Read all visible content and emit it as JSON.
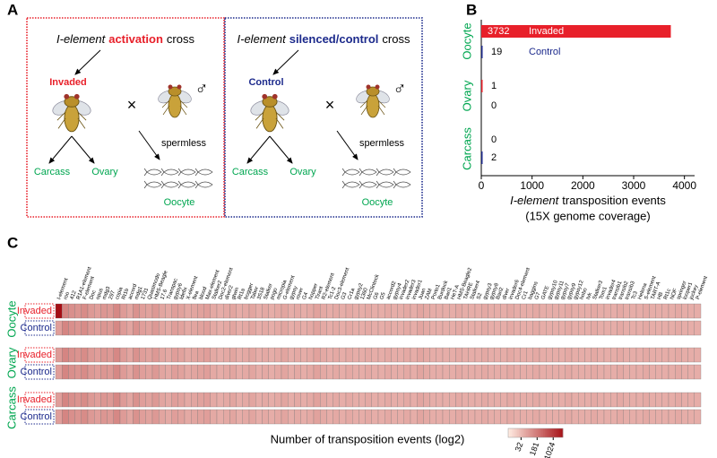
{
  "panel_a": {
    "label": "A",
    "left": {
      "title": [
        "I-element",
        "activation",
        "cross"
      ],
      "mother": "Invaded",
      "cross_sign": "×",
      "male_sign": "♂",
      "male": "spermless",
      "tissues": [
        "Carcass",
        "Ovary",
        "Oocyte"
      ],
      "color": "#e8202a"
    },
    "right": {
      "title": [
        "I-element",
        "silenced/control",
        "cross"
      ],
      "mother": "Control",
      "cross_sign": "×",
      "male_sign": "♂",
      "male": "spermless",
      "tissues": [
        "Carcass",
        "Ovary",
        "Oocyte"
      ],
      "color": "#1c2a8c"
    }
  },
  "chart_data": {
    "type": "hbar",
    "label": "B",
    "categories": [
      "Oocyte",
      "Ovary",
      "Carcass"
    ],
    "series": [
      {
        "name": "Invaded",
        "color": "#e8202a",
        "values": [
          3732,
          1,
          0
        ]
      },
      {
        "name": "Control",
        "color": "#1c2a8c",
        "values": [
          19,
          0,
          2
        ]
      }
    ],
    "xlim": [
      0,
      4200
    ],
    "xticks": [
      0,
      1000,
      2000,
      3000,
      4000
    ],
    "xlabel": [
      "I-element",
      "transposition events"
    ],
    "xlabel2": "(15X genome coverage)",
    "category_color": "#00a650"
  },
  "heatmap": {
    "label": "C",
    "columns": [
      "I-element",
      "roo",
      "412",
      "R1A1-element",
      "F-element",
      "Doc",
      "opus",
      "mdg3",
      "297",
      "copia",
      "Rt1b",
      "accord",
      "mdg1",
      "1731",
      "Quasimodo",
      "HMS-Beagle",
      "17.6",
      "Transpac",
      "gypsy6",
      "Idefix",
      "X-element",
      "flea",
      "blood",
      "Max-element",
      "Stalker2",
      "Doc2-element",
      "diver2",
      "gtwin",
      "Rt1a",
      "frogger",
      "Tabor",
      "3S18",
      "Stalker",
      "pogo",
      "micropia",
      "G-element",
      "gypsy",
      "rover",
      "G4",
      "hopper",
      "Tirant",
      "R2-element",
      "Tc1-2",
      "Doc3-element",
      "G3",
      "Cr1a",
      "gypsy2",
      "1360",
      "McClintock",
      "G6",
      "G5",
      "accord2",
      "gypsy4",
      "invader2",
      "invader3",
      "invader1",
      "Juan",
      "ZAM",
      "Porto1",
      "Burdock",
      "Bari1",
      "HeT-A",
      "HMS-Beagle2",
      "TAHRE",
      "Stalker4",
      "S2",
      "gypsy3",
      "gypsy8",
      "Bari2",
      "diver",
      "invader6",
      "Doc4-element",
      "Cr1",
      "baggins",
      "G7",
      "GATE",
      "gypsy10",
      "gypsy11",
      "gypsy7",
      "gypsy9",
      "gypsy12",
      "hobo",
      "Ivk",
      "Stalker3",
      "Tom1",
      "invader4",
      "transib1",
      "transib2",
      "transib3",
      "Tc3",
      "Helena",
      "S-element",
      "TART-A",
      "HB",
      "Rt1c",
      "NOF",
      "springer",
      "looper1",
      "jockey",
      "P-element"
    ],
    "groups": [
      {
        "name": "Oocyte",
        "rows": [
          {
            "name": "Invaded",
            "values": [
              2900,
              120,
              90,
              80,
              100,
              70,
              60,
              75,
              70,
              110,
              65,
              50,
              85,
              60,
              55,
              70,
              50,
              45,
              60,
              55,
              45,
              50,
              55,
              60,
              45,
              40,
              45,
              50,
              40,
              45,
              50,
              40,
              45,
              40,
              45,
              50,
              40,
              45,
              40,
              45,
              55,
              45,
              40,
              45,
              40,
              45,
              40,
              40,
              45,
              40,
              40,
              45,
              40,
              40,
              45,
              40,
              50,
              45,
              40,
              40,
              40,
              40,
              45,
              40,
              40,
              40,
              45,
              40,
              40,
              40,
              45,
              40,
              40,
              40,
              45,
              40,
              40,
              40,
              40,
              45,
              40,
              40,
              40,
              45,
              40,
              40,
              40,
              45,
              40,
              40,
              40,
              45,
              40,
              40,
              40,
              40,
              45,
              40,
              40,
              40
            ]
          },
          {
            "name": "Control",
            "values": [
              60,
              120,
              90,
              80,
              100,
              70,
              60,
              75,
              70,
              110,
              65,
              50,
              85,
              60,
              55,
              70,
              50,
              45,
              60,
              55,
              45,
              50,
              55,
              60,
              45,
              40,
              45,
              50,
              40,
              45,
              50,
              40,
              45,
              40,
              45,
              50,
              40,
              45,
              40,
              45,
              55,
              45,
              40,
              45,
              40,
              45,
              40,
              40,
              45,
              40,
              40,
              45,
              40,
              40,
              45,
              40,
              50,
              45,
              40,
              40,
              40,
              40,
              45,
              40,
              40,
              40,
              45,
              40,
              40,
              40,
              45,
              40,
              40,
              40,
              45,
              40,
              40,
              40,
              40,
              45,
              40,
              40,
              40,
              45,
              40,
              40,
              40,
              45,
              40,
              40,
              40,
              45,
              40,
              40,
              40,
              40,
              45,
              40,
              40,
              40
            ]
          }
        ]
      },
      {
        "name": "Ovary",
        "rows": [
          {
            "name": "Invaded",
            "values": [
              65,
              120,
              90,
              80,
              100,
              70,
              60,
              75,
              70,
              110,
              65,
              50,
              85,
              60,
              55,
              70,
              50,
              45,
              60,
              55,
              45,
              50,
              55,
              60,
              45,
              40,
              45,
              50,
              40,
              45,
              50,
              40,
              45,
              40,
              45,
              50,
              40,
              45,
              40,
              45,
              55,
              45,
              40,
              45,
              40,
              45,
              40,
              40,
              45,
              40,
              40,
              45,
              40,
              40,
              45,
              40,
              50,
              45,
              40,
              40,
              40,
              40,
              45,
              40,
              40,
              40,
              45,
              40,
              40,
              40,
              45,
              40,
              40,
              40,
              45,
              40,
              40,
              40,
              40,
              45,
              40,
              40,
              40,
              45,
              40,
              40,
              40,
              45,
              40,
              40,
              40,
              45,
              40,
              40,
              40,
              40,
              45,
              40,
              40,
              40
            ]
          },
          {
            "name": "Control",
            "values": [
              60,
              120,
              90,
              80,
              100,
              70,
              60,
              75,
              70,
              110,
              65,
              50,
              85,
              60,
              55,
              70,
              50,
              45,
              60,
              55,
              45,
              50,
              55,
              60,
              45,
              40,
              45,
              50,
              40,
              45,
              50,
              40,
              45,
              40,
              45,
              50,
              40,
              45,
              40,
              45,
              55,
              45,
              40,
              45,
              40,
              45,
              40,
              40,
              45,
              40,
              40,
              45,
              40,
              40,
              45,
              40,
              50,
              45,
              40,
              40,
              40,
              40,
              45,
              40,
              40,
              40,
              45,
              40,
              40,
              40,
              45,
              40,
              40,
              40,
              45,
              40,
              40,
              40,
              40,
              45,
              40,
              40,
              40,
              45,
              40,
              40,
              40,
              45,
              40,
              40,
              40,
              45,
              40,
              40,
              40,
              40,
              45,
              40,
              40,
              40
            ]
          }
        ]
      },
      {
        "name": "Carcass",
        "rows": [
          {
            "name": "Invaded",
            "values": [
              60,
              120,
              90,
              80,
              100,
              70,
              60,
              75,
              70,
              110,
              65,
              50,
              85,
              60,
              55,
              70,
              50,
              45,
              60,
              55,
              45,
              50,
              55,
              60,
              45,
              40,
              45,
              50,
              40,
              45,
              50,
              40,
              45,
              40,
              45,
              50,
              40,
              45,
              40,
              45,
              55,
              45,
              40,
              45,
              40,
              45,
              40,
              40,
              45,
              40,
              40,
              45,
              40,
              40,
              45,
              40,
              50,
              45,
              40,
              40,
              40,
              40,
              45,
              40,
              40,
              40,
              45,
              40,
              40,
              40,
              45,
              40,
              40,
              40,
              45,
              40,
              40,
              40,
              40,
              45,
              40,
              40,
              40,
              45,
              40,
              40,
              40,
              45,
              40,
              40,
              40,
              45,
              40,
              40,
              40,
              40,
              45,
              40,
              40,
              40
            ]
          },
          {
            "name": "Control",
            "values": [
              60,
              120,
              90,
              80,
              100,
              70,
              60,
              75,
              70,
              110,
              65,
              50,
              85,
              60,
              55,
              70,
              50,
              45,
              60,
              55,
              45,
              50,
              55,
              60,
              45,
              40,
              45,
              50,
              40,
              45,
              50,
              40,
              45,
              40,
              45,
              50,
              40,
              45,
              40,
              45,
              55,
              45,
              40,
              45,
              40,
              45,
              40,
              40,
              45,
              40,
              40,
              45,
              40,
              40,
              45,
              40,
              50,
              45,
              40,
              40,
              40,
              40,
              45,
              40,
              40,
              40,
              45,
              40,
              40,
              40,
              45,
              40,
              40,
              40,
              45,
              40,
              40,
              40,
              40,
              45,
              40,
              40,
              40,
              45,
              40,
              40,
              40,
              45,
              40,
              40,
              40,
              45,
              40,
              40,
              40,
              40,
              45,
              40,
              40,
              40
            ]
          }
        ]
      }
    ],
    "row_colors": {
      "Invaded": "#e8202a",
      "Control": "#1c2a8c"
    },
    "group_color": "#00a650",
    "xlabel": "Number of transposition events (log2)",
    "clim": [
      8,
      2896
    ],
    "colorbar_ticks": [
      32,
      181,
      1024
    ],
    "log_scale": true,
    "cmap": [
      "#fee9df",
      "#a50f15"
    ]
  }
}
